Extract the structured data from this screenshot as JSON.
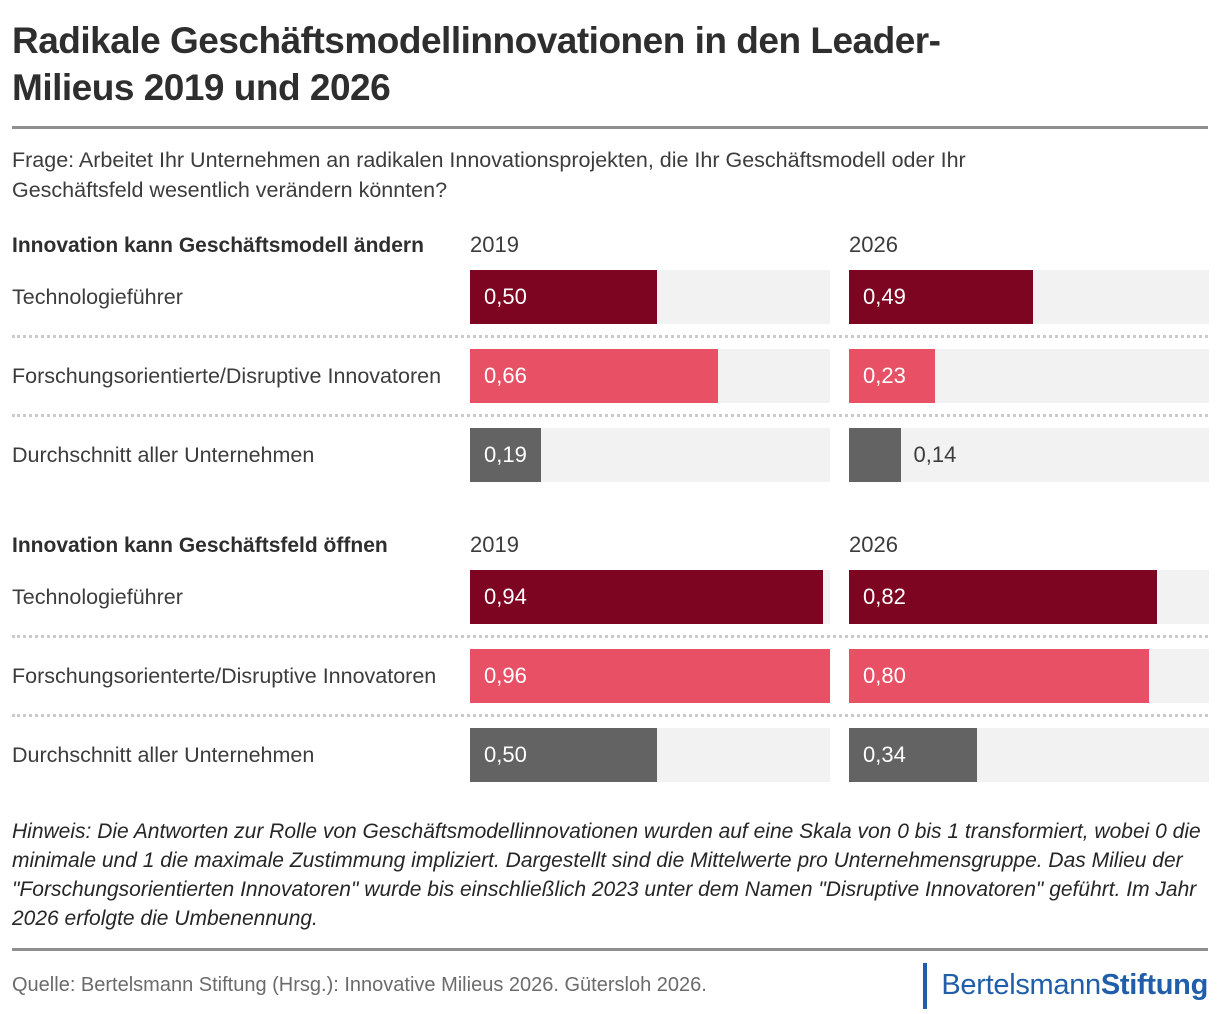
{
  "page": {
    "title_line1": "Radikale Geschäftsmodellinnovationen in den Leader-",
    "title_line2": "Milieus 2019 und 2026",
    "question": "Frage: Arbeitet Ihr Unternehmen an radikalen Innovationsprojekten, die Ihr Geschäftsmodell oder Ihr Geschäftsfeld wesentlich verändern könnten?",
    "note": "Hinweis: Die Antworten zur Rolle von Geschäftsmodellinnovationen wurden auf eine Skala von 0 bis 1 transformiert, wobei 0 die minimale und 1 die maximale Zustimmung impliziert. Dargestellt sind die Mittelwerte pro Unternehmensgruppe. Das Milieu der \"Forschungsorientierten Innovatoren\" wurde bis einschließlich 2023 unter dem Namen \"Disruptive Innovatoren\" geführt. Im Jahr 2026 erfolgte die Umbenennung.",
    "source": "Quelle: Bertelsmann Stiftung (Hrsg.): Innovative Milieus 2026. Gütersloh 2026.",
    "logo": {
      "part1": "Bertelsmann",
      "part2": "Stiftung"
    }
  },
  "colors": {
    "dark_red": "#7D0522",
    "pink": "#E85066",
    "gray": "#636363",
    "track": "#F3F2F2",
    "logo_blue": "#205EAA"
  },
  "chart_data": [
    {
      "type": "bar",
      "title": "Innovation kann Geschäftsmodell ändern",
      "columns": [
        "2019",
        "2026"
      ],
      "value_range": [
        0,
        1
      ],
      "bar_scale_max": 0.96,
      "rows": [
        {
          "label": "Technologieführer",
          "values": [
            0.5,
            0.49
          ],
          "values_display": [
            "0,50",
            "0,49"
          ],
          "color_key": "dark_red"
        },
        {
          "label": "Forschungsorientierte/Disruptive Innovatoren",
          "values": [
            0.66,
            0.23
          ],
          "values_display": [
            "0,66",
            "0,23"
          ],
          "color_key": "pink"
        },
        {
          "label": "Durchschnitt aller Unternehmen",
          "values": [
            0.19,
            0.14
          ],
          "values_display": [
            "0,19",
            "0,14"
          ],
          "color_key": "gray"
        }
      ]
    },
    {
      "type": "bar",
      "title": "Innovation kann Geschäftsfeld öffnen",
      "columns": [
        "2019",
        "2026"
      ],
      "value_range": [
        0,
        1
      ],
      "bar_scale_max": 0.96,
      "rows": [
        {
          "label": "Technologieführer",
          "values": [
            0.94,
            0.82
          ],
          "values_display": [
            "0,94",
            "0,82"
          ],
          "color_key": "dark_red"
        },
        {
          "label": "Forschungsorienterte/Disruptive Innovatoren",
          "values": [
            0.96,
            0.8
          ],
          "values_display": [
            "0,96",
            "0,80"
          ],
          "color_key": "pink"
        },
        {
          "label": "Durchschnitt aller Unternehmen",
          "values": [
            0.5,
            0.34
          ],
          "values_display": [
            "0,50",
            "0,34"
          ],
          "color_key": "gray"
        }
      ]
    }
  ]
}
